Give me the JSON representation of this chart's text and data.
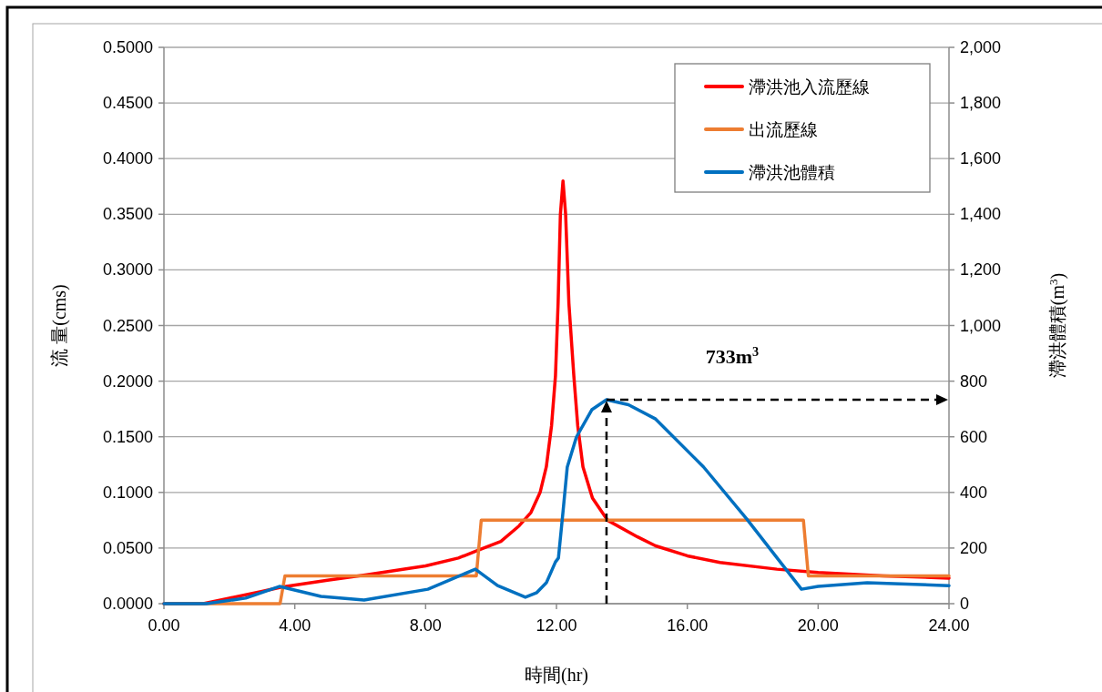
{
  "chart_data": {
    "type": "line",
    "xlabel": "時間(hr)",
    "ylabel": "流 量(cms)",
    "y2label": "滯洪體積(m$^{3}$)",
    "xlim": [
      0,
      24
    ],
    "xticks": [
      {
        "value": 0,
        "label": "0.00"
      },
      {
        "value": 4,
        "label": "4.00"
      },
      {
        "value": 8,
        "label": "8.00"
      },
      {
        "value": 12,
        "label": "12.00"
      },
      {
        "value": 16,
        "label": "16.00"
      },
      {
        "value": 20,
        "label": "20.00"
      },
      {
        "value": 24,
        "label": "24.00"
      }
    ],
    "ylim": [
      0,
      0.5
    ],
    "yticks": [
      {
        "value": 0,
        "label": "0.0000"
      },
      {
        "value": 0.05,
        "label": "0.0500"
      },
      {
        "value": 0.1,
        "label": "0.1000"
      },
      {
        "value": 0.15,
        "label": "0.1500"
      },
      {
        "value": 0.2,
        "label": "0.2000"
      },
      {
        "value": 0.25,
        "label": "0.2500"
      },
      {
        "value": 0.3,
        "label": "0.3000"
      },
      {
        "value": 0.35,
        "label": "0.3500"
      },
      {
        "value": 0.4,
        "label": "0.4000"
      },
      {
        "value": 0.45,
        "label": "0.4500"
      },
      {
        "value": 0.5,
        "label": "0.5000"
      }
    ],
    "y2lim": [
      0,
      2000
    ],
    "y2ticks": [
      0,
      200,
      400,
      600,
      800,
      {
        "value": 1000,
        "label": "1,000"
      },
      {
        "value": 1200,
        "label": "1,200"
      },
      {
        "value": 1400,
        "label": "1,400"
      },
      {
        "value": 1600,
        "label": "1,600"
      },
      {
        "value": 1800,
        "label": "1,800"
      },
      {
        "value": 2000,
        "label": "2,000"
      }
    ],
    "grid": "y",
    "legend": "top right",
    "marker": "none",
    "line_style": "solid",
    "annotations": [
      "733m$^{3}$"
    ],
    "series": [
      {
        "name": "滯洪池入流歷線",
        "color": "#ff0000",
        "x": [
          0,
          1.2,
          2,
          3,
          3.6,
          5,
          6.2,
          8,
          9,
          9.6,
          10.3,
          10.86,
          11.22,
          11.5,
          11.69,
          11.85,
          11.97,
          12.05,
          12.12,
          12.2,
          12.28,
          12.38,
          12.53,
          12.65,
          12.81,
          13.1,
          13.56,
          14.48,
          15.03,
          16,
          17,
          18.74,
          20,
          22,
          24
        ],
        "values": [
          0,
          0,
          0.005,
          0.011,
          0.015,
          0.021,
          0.026,
          0.034,
          0.041,
          0.048,
          0.056,
          0.07,
          0.082,
          0.1,
          0.123,
          0.16,
          0.205,
          0.27,
          0.35,
          0.38,
          0.35,
          0.27,
          0.205,
          0.16,
          0.123,
          0.095,
          0.075,
          0.06,
          0.052,
          0.043,
          0.037,
          0.031,
          0.028,
          0.025,
          0.023
        ]
      },
      {
        "name": "出流歷線",
        "color": "#ed7d31",
        "x": [
          0,
          3.55,
          3.7,
          9.55,
          9.7,
          19.55,
          19.7,
          24
        ],
        "values": [
          0,
          0,
          0.025,
          0.025,
          0.075,
          0.075,
          0.025,
          0.025
        ]
      },
      {
        "name": "滯洪池體積",
        "color": "#0070c0",
        "axis": "y2",
        "x": [
          0,
          1.3,
          2.5,
          3.53,
          4.8,
          6.12,
          8.07,
          9.52,
          10.2,
          11.05,
          11.4,
          11.69,
          11.97,
          12.06,
          12.2,
          12.33,
          12.61,
          13.08,
          13.53,
          14.2,
          15.03,
          16.5,
          17.82,
          19.49,
          20,
          21.5,
          24
        ],
        "values": [
          0,
          0,
          20,
          62,
          26,
          13,
          52,
          124,
          65,
          23,
          40,
          75,
          150,
          164,
          330,
          491,
          599,
          697,
          733,
          715,
          664,
          491,
          304,
          52,
          62,
          75,
          65
        ]
      }
    ]
  }
}
